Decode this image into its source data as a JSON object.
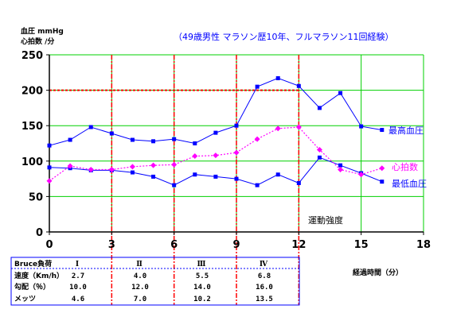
{
  "header": {
    "ylabel_line1": "血圧 mmHg",
    "ylabel_line2": "心拍数 /分",
    "subtitle": "（49歳男性 マラソン歴10年、フルマラソン11回経験）"
  },
  "colors": {
    "grid": "#00d000",
    "stage_line": "#ff0000",
    "axis": "#000000",
    "bp": "#0000ff",
    "hr": "#ff00ff",
    "table_border": "#0000ff",
    "ref_line": "#ff0000"
  },
  "chart_data": {
    "type": "line",
    "xlabel": "経過時間（分）",
    "x_ticks": [
      0,
      3,
      6,
      9,
      12,
      15,
      18
    ],
    "y_ticks": [
      0,
      50,
      100,
      150,
      200,
      250
    ],
    "xlim": [
      0,
      18
    ],
    "ylim": [
      0,
      250
    ],
    "grid": true,
    "stage_boundaries": [
      3,
      6,
      9,
      12
    ],
    "reference_line_y": 200,
    "annotation": "運動強度",
    "x": [
      0,
      1,
      2,
      3,
      4,
      5,
      6,
      7,
      8,
      9,
      10,
      11,
      12,
      13,
      14,
      15,
      16
    ],
    "series": [
      {
        "name": "最高血圧",
        "color": "#0000ff",
        "marker": "square",
        "line": "solid",
        "values": [
          122,
          130,
          148,
          139,
          130,
          128,
          131,
          125,
          140,
          150,
          205,
          217,
          206,
          175,
          196,
          149,
          144
        ]
      },
      {
        "name": "最低血圧",
        "color": "#0000ff",
        "marker": "square",
        "line": "solid",
        "values": [
          91,
          90,
          87,
          87,
          84,
          78,
          66,
          81,
          78,
          75,
          66,
          81,
          69,
          105,
          94,
          83,
          71
        ]
      },
      {
        "name": "心拍数",
        "color": "#ff00ff",
        "marker": "diamond",
        "line": "dotted",
        "values": [
          72,
          93,
          88,
          88,
          92,
          94,
          95,
          107,
          108,
          112,
          131,
          146,
          148,
          116,
          88,
          81,
          90
        ]
      }
    ]
  },
  "stage_table": {
    "row_labels": [
      "Bruce負荷",
      "速度（Km/h）",
      "勾配（％）",
      "メッツ"
    ],
    "stages": [
      {
        "roman": "Ⅰ",
        "speed": "2.7",
        "grade": "10.0",
        "mets": "4.6"
      },
      {
        "roman": "Ⅱ",
        "speed": "4.0",
        "grade": "12.0",
        "mets": "7.0"
      },
      {
        "roman": "Ⅲ",
        "speed": "5.5",
        "grade": "14.0",
        "mets": "10.2"
      },
      {
        "roman": "Ⅳ",
        "speed": "6.8",
        "grade": "16.0",
        "mets": "13.5"
      }
    ]
  }
}
